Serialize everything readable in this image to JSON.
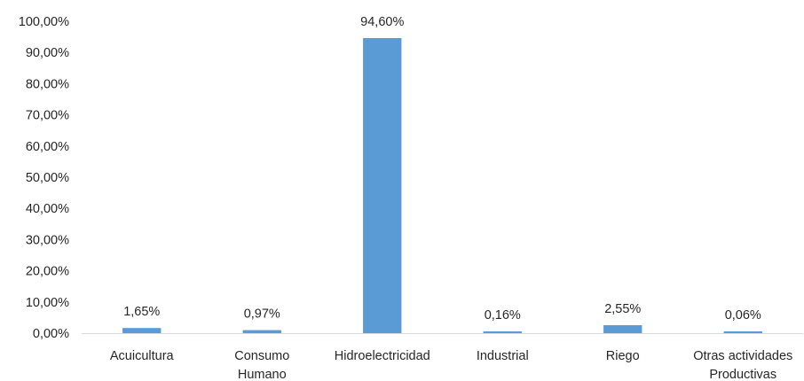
{
  "chart_data": {
    "type": "bar",
    "title": "",
    "xlabel": "",
    "ylabel": "",
    "categories": [
      [
        "Acuicultura"
      ],
      [
        "Consumo",
        "Humano"
      ],
      [
        "Hidroelectricidad"
      ],
      [
        "Industrial"
      ],
      [
        "Riego"
      ],
      [
        "Otras actividades",
        "Productivas"
      ]
    ],
    "values": [
      1.65,
      0.97,
      94.6,
      0.16,
      2.55,
      0.06
    ],
    "data_labels": [
      "1,65%",
      "0,97%",
      "94,60%",
      "0,16%",
      "2,55%",
      "0,06%"
    ],
    "ylim": [
      0,
      100
    ],
    "yticks": [
      0,
      10,
      20,
      30,
      40,
      50,
      60,
      70,
      80,
      90,
      100
    ],
    "ytick_labels": [
      "0,00%",
      "10,00%",
      "20,00%",
      "30,00%",
      "40,00%",
      "50,00%",
      "60,00%",
      "70,00%",
      "80,00%",
      "90,00%",
      "100,00%"
    ],
    "grid": false,
    "legend": "none",
    "colors": {
      "bar": "#5B9BD5",
      "axis": "#d9d9d9",
      "text": "#262626"
    }
  }
}
